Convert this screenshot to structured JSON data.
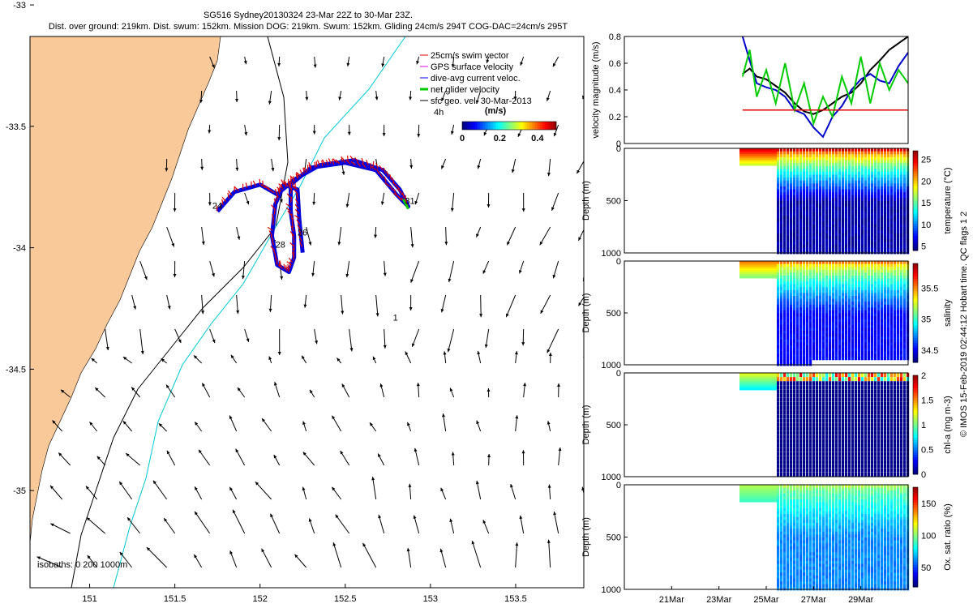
{
  "title": {
    "line1": "SG516 Sydney20130324 23-Mar 22Z to 30-Mar 23Z.",
    "line2": "Dist. over ground: 219km. Dist. swum: 152km. Mission DOG: 219km. Swum: 152km. Gliding 24cm/s 294T COG-DAC=24cm/s 295T"
  },
  "chart_data": [
    {
      "type": "scatter",
      "name": "map",
      "xlim": [
        150.65,
        153.9
      ],
      "ylim": [
        -35.4,
        -33.13
      ],
      "x_ticks": [
        "151",
        "151.5",
        "152",
        "152.5",
        "153",
        "153.5"
      ],
      "y_ticks": [
        "-33",
        "-33.5",
        "-34",
        "-34.5",
        "-35"
      ],
      "legend": [
        {
          "label": "25cm/s swim vector",
          "color": "#e00000"
        },
        {
          "label": "GPS surface velocity",
          "color": "#e000e0"
        },
        {
          "label": "dive-avg current veloc.",
          "color": "#0000dd"
        },
        {
          "label": "net glider velocity",
          "color": "#00cc00"
        },
        {
          "label": "sfc geo. vel. 30-Mar-2013",
          "color": "#000000"
        }
      ],
      "legend_extra": "4h",
      "colorbar": {
        "label": "(m/s)",
        "ticks": [
          "0",
          "0.2",
          "0.4"
        ],
        "range": [
          0,
          0.5
        ]
      },
      "isobaths_label": "isobaths: 0   200   1000m",
      "track_labels": [
        {
          "text": "24",
          "x": 151.72,
          "y": -33.84
        },
        {
          "text": "26",
          "x": 152.22,
          "y": -33.95
        },
        {
          "text": "28",
          "x": 152.09,
          "y": -34.0
        },
        {
          "text": "31",
          "x": 152.85,
          "y": -33.82
        },
        {
          "text": "1",
          "x": 152.78,
          "y": -34.3
        }
      ],
      "track": [
        [
          151.75,
          -33.85
        ],
        [
          151.85,
          -33.77
        ],
        [
          152.0,
          -33.74
        ],
        [
          152.1,
          -33.78
        ],
        [
          152.2,
          -33.72
        ],
        [
          152.35,
          -33.66
        ],
        [
          152.55,
          -33.64
        ],
        [
          152.72,
          -33.68
        ],
        [
          152.82,
          -33.76
        ],
        [
          152.87,
          -33.83
        ],
        [
          152.8,
          -33.78
        ],
        [
          152.68,
          -33.68
        ],
        [
          152.5,
          -33.65
        ],
        [
          152.3,
          -33.67
        ],
        [
          152.18,
          -33.74
        ],
        [
          152.18,
          -33.85
        ],
        [
          152.2,
          -33.95
        ],
        [
          152.2,
          -34.04
        ],
        [
          152.17,
          -34.1
        ],
        [
          152.1,
          -34.07
        ],
        [
          152.07,
          -33.95
        ],
        [
          152.09,
          -33.82
        ],
        [
          152.14,
          -33.74
        ],
        [
          152.22,
          -33.76
        ],
        [
          152.23,
          -33.88
        ],
        [
          152.25,
          -34.02
        ]
      ]
    },
    {
      "type": "line",
      "name": "velocity",
      "ylabel": "velocity magnitude (m/s)",
      "ylim": [
        0,
        0.8
      ],
      "y_ticks": [
        "0",
        "0.2",
        "0.4",
        "0.6",
        "0.8"
      ],
      "x": [
        24.0,
        24.3,
        24.6,
        25.0,
        25.4,
        25.8,
        26.2,
        26.6,
        27.0,
        27.4,
        27.8,
        28.2,
        28.6,
        29.0,
        29.4,
        29.8,
        30.2,
        30.6,
        31.0
      ],
      "series": [
        {
          "color": "#000000",
          "values": [
            0.52,
            0.56,
            0.5,
            0.48,
            0.43,
            0.38,
            0.3,
            0.24,
            0.22,
            0.25,
            0.3,
            0.35,
            0.38,
            0.45,
            0.55,
            0.62,
            0.7,
            0.75,
            0.8
          ]
        },
        {
          "color": "#0000cc",
          "values": [
            0.8,
            0.62,
            0.45,
            0.42,
            0.4,
            0.35,
            0.25,
            0.22,
            0.12,
            0.05,
            0.2,
            0.28,
            0.4,
            0.48,
            0.52,
            0.47,
            0.45,
            0.58,
            0.68
          ]
        },
        {
          "color": "#00cc00",
          "values": [
            0.5,
            0.7,
            0.35,
            0.55,
            0.3,
            0.6,
            0.25,
            0.45,
            0.15,
            0.35,
            0.2,
            0.5,
            0.3,
            0.65,
            0.3,
            0.6,
            0.4,
            0.55,
            0.45
          ]
        },
        {
          "color": "#e00000",
          "values": [
            0.25,
            0.25,
            0.25,
            0.25,
            0.25,
            0.25,
            0.25,
            0.25,
            0.25,
            0.25,
            0.25,
            0.25,
            0.25,
            0.25,
            0.25,
            0.25,
            0.25,
            0.25,
            0.25
          ]
        }
      ]
    },
    {
      "type": "heatmap",
      "name": "temperature",
      "ylabel": "Depth (m)",
      "ylim": [
        1000,
        0
      ],
      "y_ticks": [
        "0",
        "500",
        "1000"
      ],
      "cbar_label": "temperature (°C)",
      "cbar_ticks": [
        "5",
        "10",
        "15",
        "20",
        "25"
      ],
      "cbar_range": [
        4,
        27
      ],
      "surface": 25,
      "deep": 5
    },
    {
      "type": "heatmap",
      "name": "salinity",
      "ylabel": "Depth (m)",
      "ylim": [
        1000,
        0
      ],
      "y_ticks": [
        "0",
        "500",
        "1000"
      ],
      "cbar_label": "salinity",
      "cbar_ticks": [
        "34.5",
        "35",
        "35.5"
      ],
      "cbar_range": [
        34.3,
        35.9
      ],
      "surface": 35.5,
      "deep": 34.5
    },
    {
      "type": "heatmap",
      "name": "chl",
      "ylabel": "Depth (m)",
      "ylim": [
        1000,
        0
      ],
      "y_ticks": [
        "0",
        "500",
        "1000"
      ],
      "cbar_label": "chl-a (mg m-3)",
      "cbar_ticks": [
        "0",
        "0.5",
        "1",
        "1.5",
        "2"
      ],
      "cbar_range": [
        0,
        2
      ],
      "surface": 1.2,
      "deep": 0
    },
    {
      "type": "heatmap",
      "name": "oxygen",
      "ylabel": "Depth (m)",
      "ylim": [
        1000,
        0
      ],
      "y_ticks": [
        "0",
        "500",
        "1000"
      ],
      "cbar_label": "Ox. sat. ratio (%)",
      "cbar_ticks": [
        "50",
        "100",
        "150"
      ],
      "cbar_range": [
        20,
        175
      ],
      "surface": 105,
      "deep": 60,
      "x_ticks": [
        "21Mar",
        "23Mar",
        "25Mar",
        "27Mar",
        "29Mar"
      ],
      "xlim": [
        19.0,
        31.0
      ]
    }
  ],
  "footer": "© IMOS 15-Feb-2019 02:44:12 Hobart time. QC flags 1  2",
  "colors": {
    "land": "#f9c99a",
    "isobath200": "#00c8d8",
    "isobath1000": "#000000",
    "swim": "#e00000",
    "current": "#0000dd",
    "net": "#00cc00"
  }
}
